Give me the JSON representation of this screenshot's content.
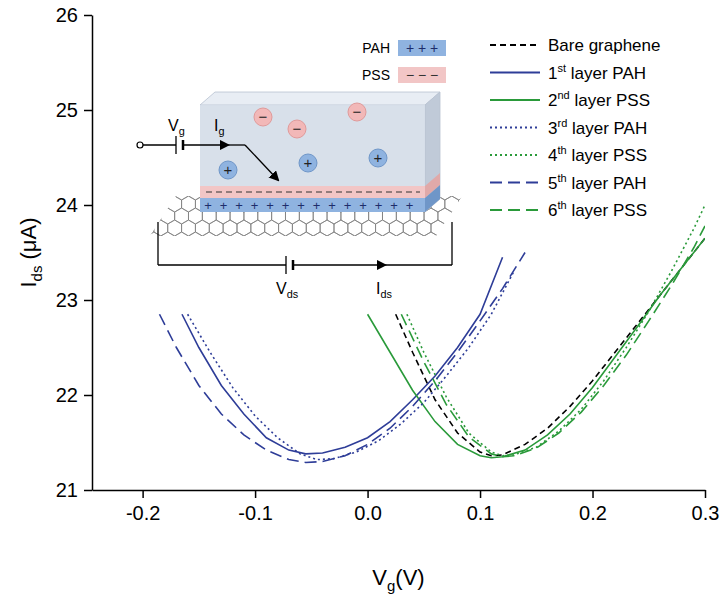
{
  "chart_data": {
    "type": "line",
    "xlabel": [
      "V",
      "g",
      "(V)"
    ],
    "ylabel": [
      "I",
      "ds",
      " (μA)"
    ],
    "xlim": [
      -0.245,
      0.3
    ],
    "ylim": [
      21,
      26
    ],
    "xticks": [
      -0.2,
      -0.1,
      {
        "value": 0,
        "label": "0.0"
      },
      0.1,
      0.2,
      0.3
    ],
    "yticks": [
      21,
      22,
      23,
      24,
      25,
      26
    ],
    "grid": false,
    "legend": "upper right",
    "series": [
      {
        "name": "Bare graphene",
        "color": "#000000",
        "line_style": "dashed",
        "x": [
          0.025,
          0.04,
          0.06,
          0.08,
          0.1,
          0.11,
          0.12,
          0.14,
          0.16,
          0.18,
          0.2,
          0.22,
          0.24,
          0.26,
          0.28,
          0.3
        ],
        "values": [
          22.85,
          22.45,
          21.95,
          21.6,
          21.4,
          21.36,
          21.37,
          21.48,
          21.65,
          21.88,
          22.15,
          22.45,
          22.75,
          23.05,
          23.35,
          23.65
        ]
      },
      {
        "name": "1st layer PAH",
        "color": "#2e3d98",
        "line_style": "solid",
        "x": [
          -0.165,
          -0.15,
          -0.13,
          -0.11,
          -0.09,
          -0.07,
          -0.055,
          -0.04,
          -0.02,
          0.0,
          0.02,
          0.04,
          0.06,
          0.08,
          0.1,
          0.12
        ],
        "values": [
          22.85,
          22.5,
          22.1,
          21.8,
          21.55,
          21.42,
          21.38,
          21.39,
          21.45,
          21.55,
          21.72,
          21.95,
          22.2,
          22.5,
          22.85,
          23.45
        ]
      },
      {
        "name": "2nd layer PSS",
        "color": "#2a9a3a",
        "line_style": "solid",
        "x": [
          0.0,
          0.02,
          0.04,
          0.06,
          0.08,
          0.1,
          0.11,
          0.12,
          0.14,
          0.16,
          0.18,
          0.2,
          0.22,
          0.24,
          0.26,
          0.28,
          0.3
        ],
        "values": [
          22.85,
          22.45,
          22.05,
          21.72,
          21.48,
          21.36,
          21.34,
          21.35,
          21.42,
          21.58,
          21.8,
          22.08,
          22.4,
          22.72,
          23.05,
          23.35,
          23.65
        ]
      },
      {
        "name": "3rd layer PAH",
        "color": "#2e3d98",
        "line_style": "dotted",
        "x": [
          -0.16,
          -0.14,
          -0.12,
          -0.1,
          -0.08,
          -0.06,
          -0.045,
          -0.03,
          -0.01,
          0.01,
          0.03,
          0.05,
          0.07,
          0.09,
          0.11,
          0.13
        ],
        "values": [
          22.85,
          22.45,
          22.08,
          21.78,
          21.55,
          21.38,
          21.32,
          21.33,
          21.4,
          21.52,
          21.7,
          21.92,
          22.2,
          22.5,
          22.85,
          23.3
        ]
      },
      {
        "name": "4th layer PSS",
        "color": "#2a9a3a",
        "line_style": "dotted",
        "x": [
          0.035,
          0.05,
          0.07,
          0.09,
          0.11,
          0.12,
          0.13,
          0.15,
          0.17,
          0.19,
          0.21,
          0.23,
          0.25,
          0.27,
          0.29,
          0.3
        ],
        "values": [
          22.85,
          22.45,
          21.98,
          21.6,
          21.4,
          21.36,
          21.37,
          21.45,
          21.62,
          21.85,
          22.15,
          22.5,
          22.88,
          23.3,
          23.75,
          24.0
        ]
      },
      {
        "name": "5th layer PAH",
        "color": "#2e3d98",
        "line_style": "longdash",
        "x": [
          -0.185,
          -0.17,
          -0.15,
          -0.13,
          -0.11,
          -0.09,
          -0.07,
          -0.055,
          -0.04,
          -0.02,
          0.0,
          0.02,
          0.04,
          0.06,
          0.08,
          0.1,
          0.12,
          0.14
        ],
        "values": [
          22.85,
          22.5,
          22.1,
          21.8,
          21.58,
          21.42,
          21.32,
          21.29,
          21.3,
          21.36,
          21.48,
          21.65,
          21.88,
          22.15,
          22.45,
          22.78,
          23.12,
          23.5
        ]
      },
      {
        "name": "6th layer PSS",
        "color": "#2a9a3a",
        "line_style": "longdash",
        "x": [
          0.03,
          0.05,
          0.07,
          0.09,
          0.11,
          0.12,
          0.13,
          0.15,
          0.17,
          0.19,
          0.21,
          0.23,
          0.25,
          0.27,
          0.29,
          0.3
        ],
        "values": [
          22.85,
          22.35,
          21.9,
          21.56,
          21.38,
          21.35,
          21.36,
          21.44,
          21.6,
          21.82,
          22.1,
          22.42,
          22.78,
          23.15,
          23.55,
          23.78
        ]
      }
    ],
    "inset": {
      "gate_voltage": [
        "V",
        "g"
      ],
      "gate_current": [
        "I",
        "g"
      ],
      "ds_voltage": [
        "V",
        "ds"
      ],
      "ds_current": [
        "I",
        "ds"
      ],
      "key": [
        {
          "name": "PAH",
          "sign": "+"
        },
        {
          "name": "PSS",
          "sign": "−"
        }
      ]
    }
  }
}
